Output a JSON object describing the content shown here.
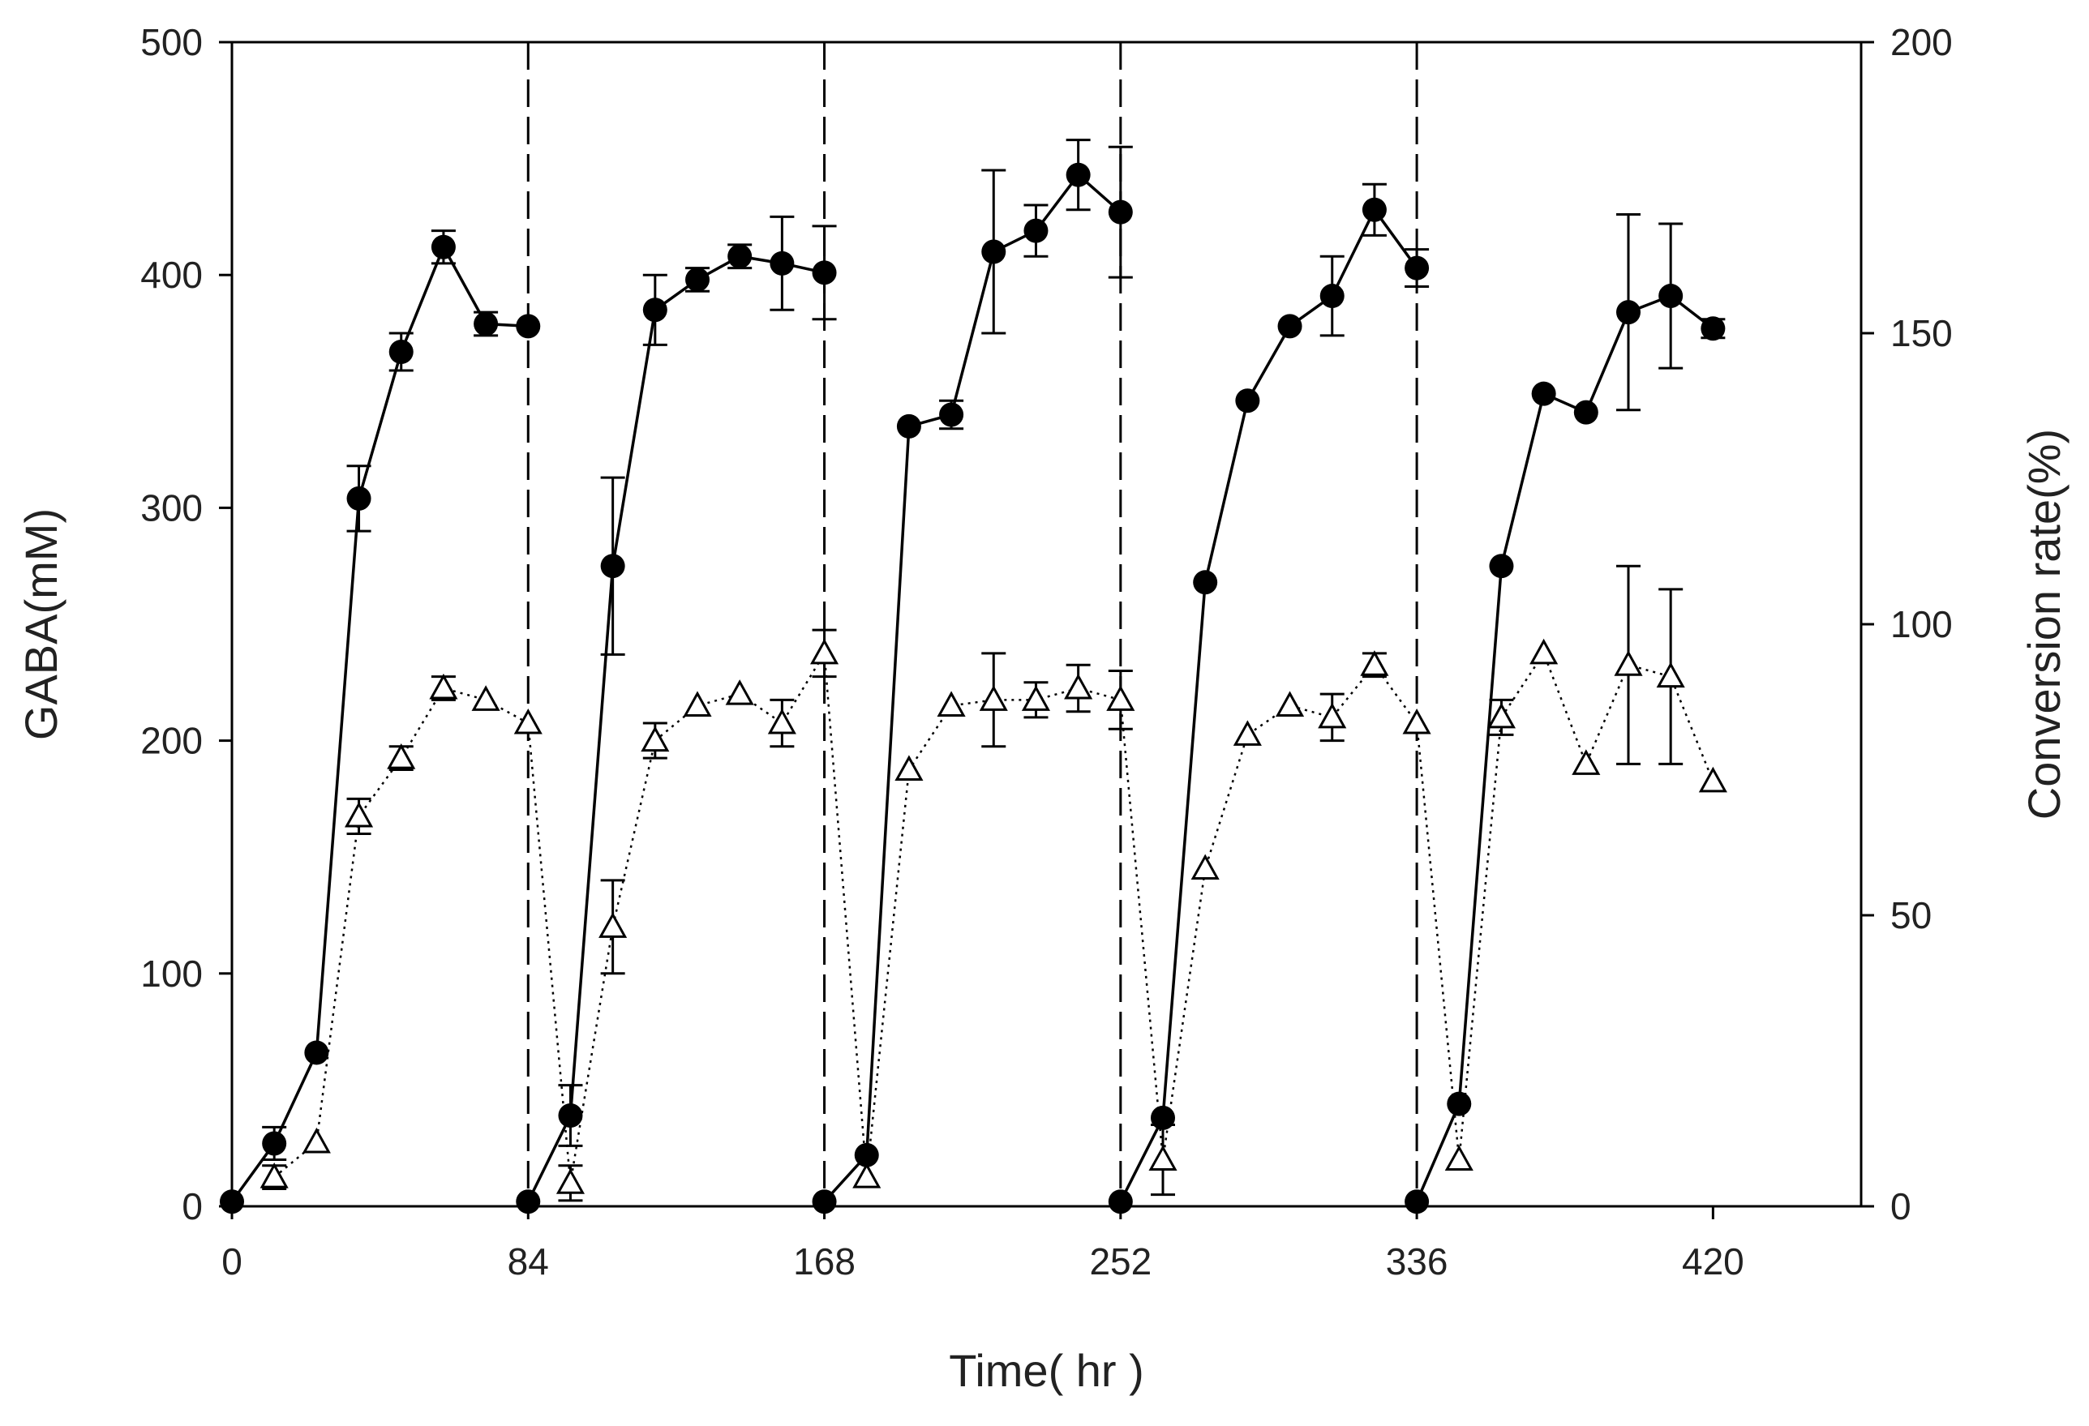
{
  "chart_data": {
    "type": "line",
    "xlabel": "Time( hr )",
    "ylabel": "GABA(mM)",
    "y2label": "Conversion rate(%)",
    "xlim": [
      0,
      462
    ],
    "ylim": [
      0,
      500
    ],
    "y2lim": [
      0,
      200
    ],
    "x_ticks": [
      0,
      84,
      168,
      252,
      336,
      420
    ],
    "y_ticks": [
      0,
      100,
      200,
      300,
      400,
      500
    ],
    "y2_ticks": [
      0,
      50,
      100,
      150,
      200
    ],
    "grid": false,
    "batch_separators": [
      84,
      168,
      252,
      336
    ],
    "series": [
      {
        "axis": "left",
        "marker": "filled-circle",
        "line": "solid",
        "color": "#000000",
        "segments": [
          [
            {
              "x": 0,
              "y": 2,
              "err": 0
            },
            {
              "x": 12,
              "y": 27,
              "err": 7
            },
            {
              "x": 24,
              "y": 66,
              "err": 0
            },
            {
              "x": 36,
              "y": 304,
              "err": 14
            },
            {
              "x": 48,
              "y": 367,
              "err": 8
            },
            {
              "x": 60,
              "y": 412,
              "err": 7
            },
            {
              "x": 72,
              "y": 379,
              "err": 5
            },
            {
              "x": 84,
              "y": 378,
              "err": 0
            }
          ],
          [
            {
              "x": 84,
              "y": 2,
              "err": 0
            },
            {
              "x": 96,
              "y": 39,
              "err": 13
            },
            {
              "x": 108,
              "y": 275,
              "err": 38
            },
            {
              "x": 120,
              "y": 385,
              "err": 15
            },
            {
              "x": 132,
              "y": 398,
              "err": 5
            },
            {
              "x": 144,
              "y": 408,
              "err": 5
            },
            {
              "x": 156,
              "y": 405,
              "err": 20
            },
            {
              "x": 168,
              "y": 401,
              "err": 20
            }
          ],
          [
            {
              "x": 168,
              "y": 2,
              "err": 0
            },
            {
              "x": 180,
              "y": 22,
              "err": 0
            },
            {
              "x": 192,
              "y": 335,
              "err": 0
            },
            {
              "x": 204,
              "y": 340,
              "err": 6
            },
            {
              "x": 216,
              "y": 410,
              "err": 35
            },
            {
              "x": 228,
              "y": 419,
              "err": 11
            },
            {
              "x": 240,
              "y": 443,
              "err": 15
            },
            {
              "x": 252,
              "y": 427,
              "err": 28
            }
          ],
          [
            {
              "x": 252,
              "y": 2,
              "err": 0
            },
            {
              "x": 264,
              "y": 38,
              "err": 0
            },
            {
              "x": 276,
              "y": 268,
              "err": 0
            },
            {
              "x": 288,
              "y": 346,
              "err": 0
            },
            {
              "x": 300,
              "y": 378,
              "err": 0
            },
            {
              "x": 312,
              "y": 391,
              "err": 17
            },
            {
              "x": 324,
              "y": 428,
              "err": 11
            },
            {
              "x": 336,
              "y": 403,
              "err": 8
            }
          ],
          [
            {
              "x": 336,
              "y": 2,
              "err": 0
            },
            {
              "x": 348,
              "y": 44,
              "err": 0
            },
            {
              "x": 360,
              "y": 275,
              "err": 0
            },
            {
              "x": 372,
              "y": 349,
              "err": 0
            },
            {
              "x": 384,
              "y": 341,
              "err": 0
            },
            {
              "x": 396,
              "y": 384,
              "err": 42
            },
            {
              "x": 408,
              "y": 391,
              "err": 31
            },
            {
              "x": 420,
              "y": 377,
              "err": 4
            }
          ]
        ]
      },
      {
        "axis": "right",
        "marker": "open-triangle",
        "line": "dotted",
        "color": "#000000",
        "segments": [
          [
            {
              "x": 12,
              "y": 5,
              "err": 2
            },
            {
              "x": 24,
              "y": 11,
              "err": 0
            },
            {
              "x": 36,
              "y": 67,
              "err": 3
            },
            {
              "x": 48,
              "y": 77,
              "err": 2
            },
            {
              "x": 60,
              "y": 89,
              "err": 2
            },
            {
              "x": 72,
              "y": 87,
              "err": 0
            },
            {
              "x": 84,
              "y": 83,
              "err": 0
            }
          ],
          [
            {
              "x": 84,
              "y": 83,
              "err": 0
            },
            {
              "x": 96,
              "y": 4,
              "err": 3
            },
            {
              "x": 108,
              "y": 48,
              "err": 8
            },
            {
              "x": 120,
              "y": 80,
              "err": 3
            },
            {
              "x": 132,
              "y": 86,
              "err": 0
            },
            {
              "x": 144,
              "y": 88,
              "err": 0
            },
            {
              "x": 156,
              "y": 83,
              "err": 4
            },
            {
              "x": 168,
              "y": 95,
              "err": 4
            }
          ],
          [
            {
              "x": 168,
              "y": 95,
              "err": 0
            },
            {
              "x": 180,
              "y": 5,
              "err": 0
            },
            {
              "x": 192,
              "y": 75,
              "err": 0
            },
            {
              "x": 204,
              "y": 86,
              "err": 0
            },
            {
              "x": 216,
              "y": 87,
              "err": 8
            },
            {
              "x": 228,
              "y": 87,
              "err": 3
            },
            {
              "x": 240,
              "y": 89,
              "err": 4
            },
            {
              "x": 252,
              "y": 87,
              "err": 5
            }
          ],
          [
            {
              "x": 252,
              "y": 87,
              "err": 0
            },
            {
              "x": 264,
              "y": 8,
              "err": 6
            },
            {
              "x": 276,
              "y": 58,
              "err": 0
            },
            {
              "x": 288,
              "y": 81,
              "err": 0
            },
            {
              "x": 300,
              "y": 86,
              "err": 0
            },
            {
              "x": 312,
              "y": 84,
              "err": 4
            },
            {
              "x": 324,
              "y": 93,
              "err": 2
            },
            {
              "x": 336,
              "y": 83,
              "err": 0
            }
          ],
          [
            {
              "x": 336,
              "y": 83,
              "err": 0
            },
            {
              "x": 348,
              "y": 8,
              "err": 0
            },
            {
              "x": 360,
              "y": 84,
              "err": 3
            },
            {
              "x": 372,
              "y": 95,
              "err": 0
            },
            {
              "x": 384,
              "y": 76,
              "err": 0
            },
            {
              "x": 396,
              "y": 93,
              "err": 17
            },
            {
              "x": 408,
              "y": 91,
              "err": 15
            },
            {
              "x": 420,
              "y": 73,
              "err": 0
            }
          ]
        ]
      }
    ]
  }
}
